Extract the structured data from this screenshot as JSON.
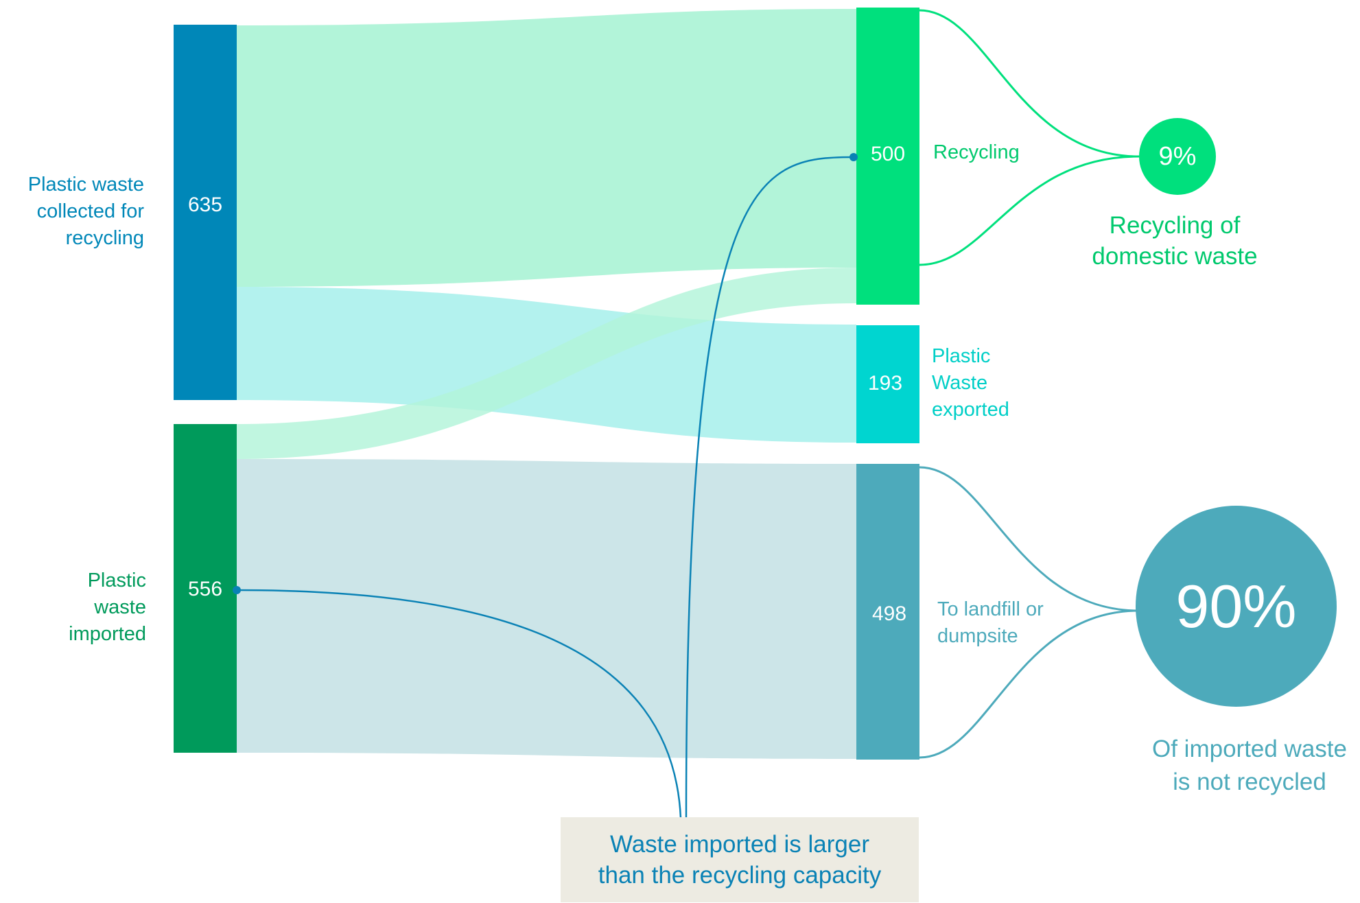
{
  "colors": {
    "collected": "#0087b8",
    "imported": "#009a5b",
    "recycling": "#00e07d",
    "exported": "#00d5d0",
    "landfill": "#4daabb",
    "flow_recycling": "#b2f4d9",
    "flow_exported": "#b3f2ee",
    "flow_landfill": "#cce5e8",
    "callout_bg": "#edebe2",
    "callout_text": "#0a82b5"
  },
  "nodes": {
    "collected": {
      "label": "Plastic waste\ncollected  for\nrecycling",
      "value": "635"
    },
    "imported": {
      "label": "Plastic\nwaste\nimported",
      "value": "556"
    },
    "recycling": {
      "label": "Recycling",
      "value": "500"
    },
    "exported": {
      "label": "Plastic\nWaste\nexported",
      "value": "193"
    },
    "landfill": {
      "label": "To landfill or\ndumpsite",
      "value": "498"
    }
  },
  "stats": {
    "recycling_pct": {
      "value": "9%",
      "caption": "Recycling of\ndomestic waste"
    },
    "landfill_pct": {
      "value": "90%",
      "caption": "Of imported waste\nis not recycled"
    }
  },
  "callout": {
    "text": "Waste imported is larger\nthan the recycling capacity"
  }
}
